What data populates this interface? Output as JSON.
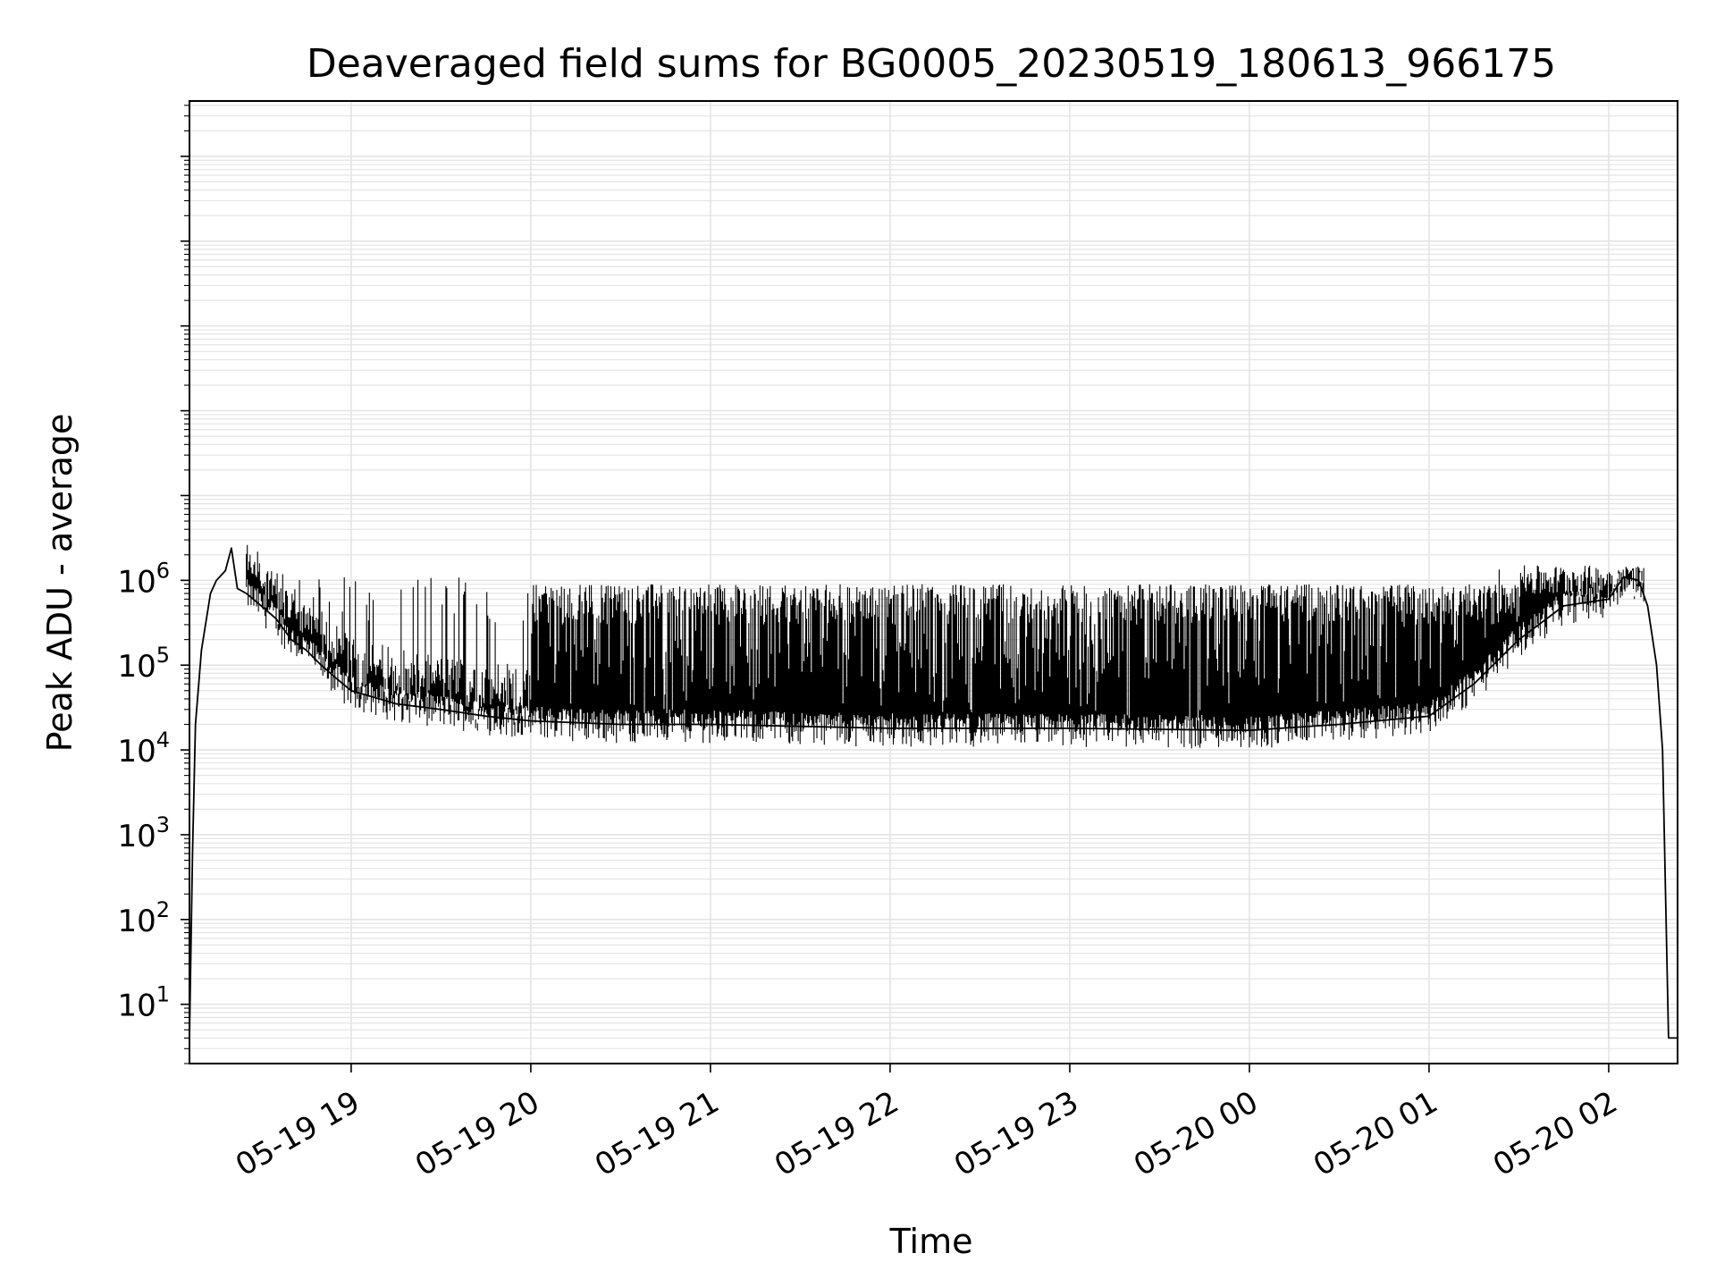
{
  "chart_data": {
    "type": "line",
    "title": "Deaveraged field sums for BG0005_20230519_180613_966175",
    "xlabel": "Time",
    "ylabel": "Peak ADU - average",
    "yscale": "log",
    "ylim": [
      2,
      450000000000
    ],
    "xlim": [
      "05-19 18:06",
      "05-20 02:23"
    ],
    "y_ticks": [
      {
        "base": "10",
        "exp": "1",
        "value": 10
      },
      {
        "base": "10",
        "exp": "2",
        "value": 100
      },
      {
        "base": "10",
        "exp": "3",
        "value": 1000
      },
      {
        "base": "10",
        "exp": "4",
        "value": 10000
      },
      {
        "base": "10",
        "exp": "5",
        "value": 100000
      },
      {
        "base": "10",
        "exp": "6",
        "value": 1000000
      }
    ],
    "x_ticks": [
      {
        "label": "05-19 19",
        "time": "05-19 19:00"
      },
      {
        "label": "05-19 20",
        "time": "05-19 20:00"
      },
      {
        "label": "05-19 21",
        "time": "05-19 21:00"
      },
      {
        "label": "05-19 22",
        "time": "05-19 22:00"
      },
      {
        "label": "05-19 23",
        "time": "05-19 23:00"
      },
      {
        "label": "05-20 00",
        "time": "05-20 00:00"
      },
      {
        "label": "05-20 01",
        "time": "05-20 01:00"
      },
      {
        "label": "05-20 02",
        "time": "05-20 02:00"
      }
    ],
    "grid": true,
    "series_color": "#000000",
    "series": [
      {
        "values": [
          {
            "x": "05-19 18:06",
            "y": 4
          },
          {
            "x": "05-19 18:07",
            "y": 600
          },
          {
            "x": "05-19 18:08",
            "y": 20000
          },
          {
            "x": "05-19 18:10",
            "y": 150000
          },
          {
            "x": "05-19 18:13",
            "y": 700000
          },
          {
            "x": "05-19 18:15",
            "y": 1000000
          },
          {
            "x": "05-19 18:18",
            "y": 1300000
          },
          {
            "x": "05-19 18:20",
            "y": 2400000
          },
          {
            "x": "05-19 18:22",
            "y": 800000
          },
          {
            "x": "05-19 18:25",
            "y": 700000
          },
          {
            "x": "05-19 18:30",
            "y": 500000
          },
          {
            "x": "05-19 18:35",
            "y": 350000
          },
          {
            "x": "05-19 18:40",
            "y": 200000
          },
          {
            "x": "05-19 18:45",
            "y": 150000
          },
          {
            "x": "05-19 18:50",
            "y": 100000
          },
          {
            "x": "05-19 18:55",
            "y": 70000
          },
          {
            "x": "05-19 19:00",
            "y": 50000
          },
          {
            "x": "05-19 19:15",
            "y": 35000
          },
          {
            "x": "05-19 19:30",
            "y": 30000
          },
          {
            "x": "05-19 19:45",
            "y": 25000
          },
          {
            "x": "05-19 20:00",
            "y": 22000
          },
          {
            "x": "05-19 20:30",
            "y": 20000
          },
          {
            "x": "05-19 21:00",
            "y": 20000
          },
          {
            "x": "05-19 22:00",
            "y": 18000
          },
          {
            "x": "05-19 23:00",
            "y": 18000
          },
          {
            "x": "05-20 00:00",
            "y": 17000
          },
          {
            "x": "05-20 00:30",
            "y": 20000
          },
          {
            "x": "05-20 01:00",
            "y": 25000
          },
          {
            "x": "05-20 01:15",
            "y": 60000
          },
          {
            "x": "05-20 01:30",
            "y": 200000
          },
          {
            "x": "05-20 01:45",
            "y": 500000
          },
          {
            "x": "05-20 02:00",
            "y": 600000
          },
          {
            "x": "05-20 02:05",
            "y": 1100000
          },
          {
            "x": "05-20 02:10",
            "y": 1000000
          },
          {
            "x": "05-20 02:13",
            "y": 500000
          },
          {
            "x": "05-20 02:16",
            "y": 100000
          },
          {
            "x": "05-20 02:18",
            "y": 10000
          },
          {
            "x": "05-20 02:20",
            "y": 4
          },
          {
            "x": "05-20 02:23",
            "y": 4
          }
        ]
      }
    ]
  }
}
